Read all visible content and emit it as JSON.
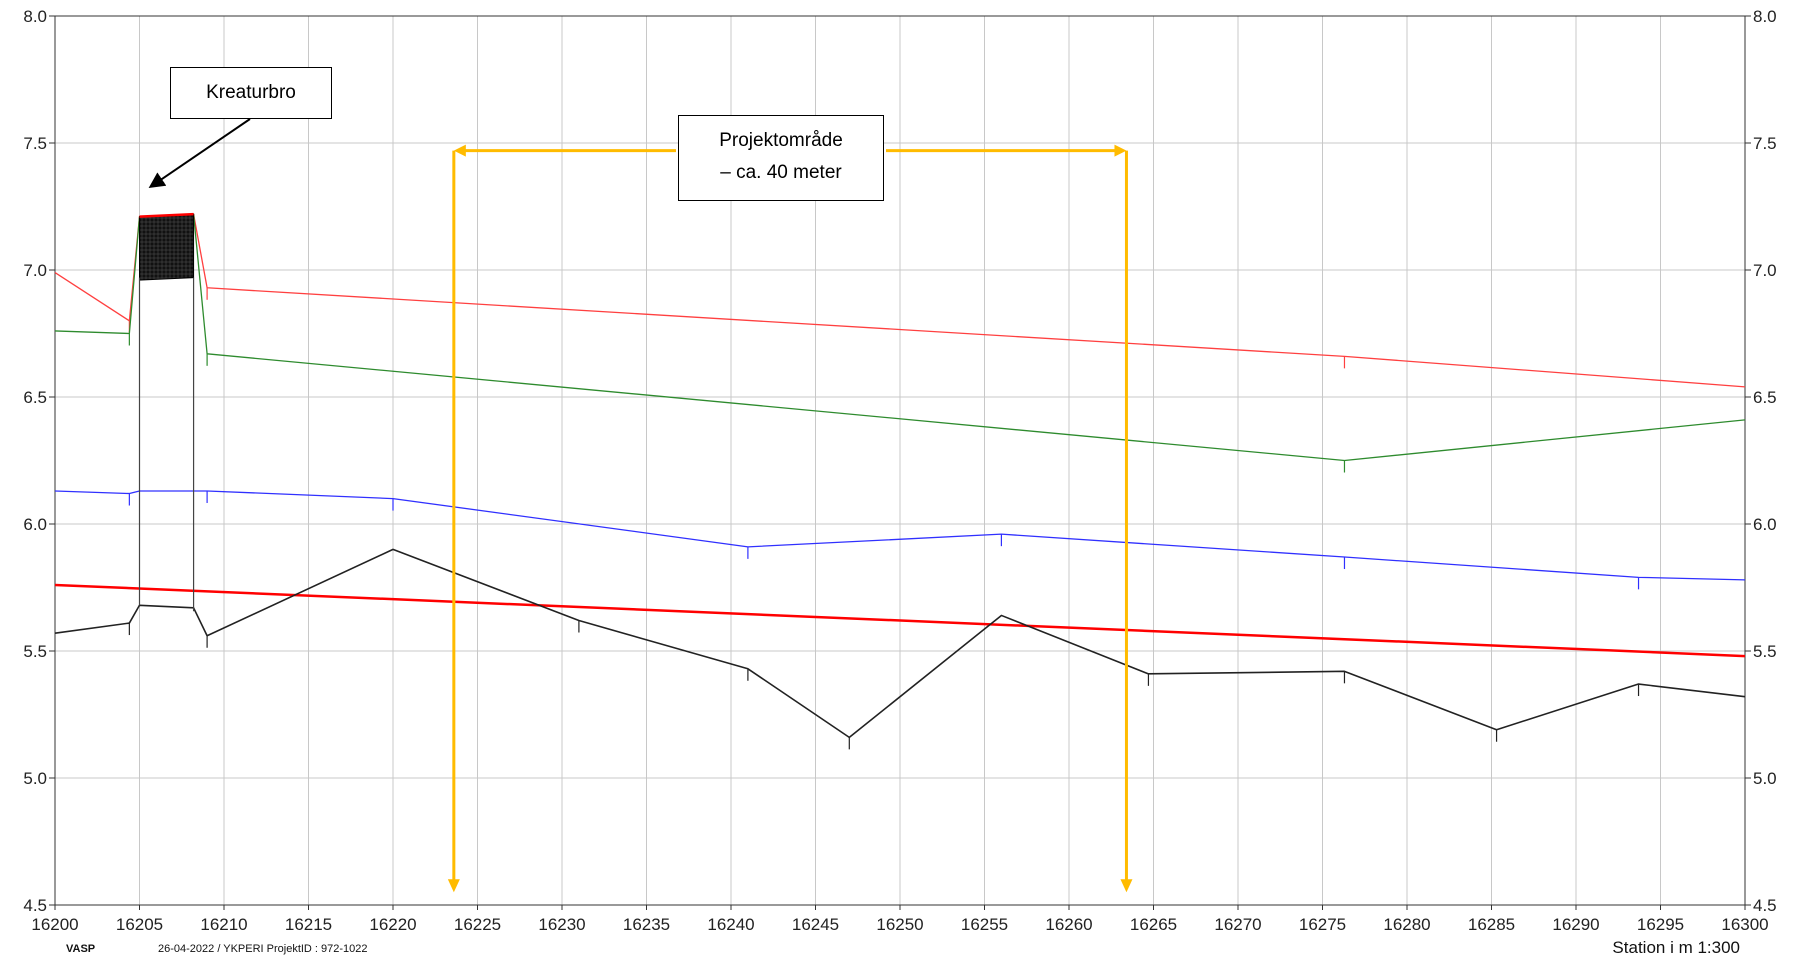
{
  "chart_data": {
    "type": "line",
    "xlim": [
      16200,
      16300
    ],
    "ylim": [
      4.5,
      8.0
    ],
    "x_ticks": [
      16200,
      16205,
      16210,
      16215,
      16220,
      16225,
      16230,
      16235,
      16240,
      16245,
      16250,
      16255,
      16260,
      16265,
      16270,
      16275,
      16280,
      16285,
      16290,
      16295,
      16300
    ],
    "y_ticks": [
      "4.5",
      "5.0",
      "5.5",
      "6.0",
      "6.5",
      "7.0",
      "7.5",
      "8.0"
    ],
    "grid": true,
    "xlabel": "Station i m  1:300",
    "series": [
      {
        "color": "#ff4040",
        "width": 1.3,
        "points": [
          [
            16200,
            6.99
          ],
          [
            16204.4,
            6.8
          ],
          [
            16205,
            7.21
          ],
          [
            16208.2,
            7.22
          ],
          [
            16209,
            6.93
          ],
          [
            16276.3,
            6.66
          ],
          [
            16300,
            6.54
          ]
        ],
        "ticks": [
          16204.4,
          16209,
          16276.3
        ]
      },
      {
        "color": "#2e8b2e",
        "width": 1.3,
        "points": [
          [
            16200,
            6.76
          ],
          [
            16204.4,
            6.75
          ],
          [
            16205,
            7.21
          ],
          [
            16208.2,
            7.22
          ],
          [
            16209,
            6.67
          ],
          [
            16276.3,
            6.25
          ],
          [
            16300,
            6.41
          ]
        ],
        "ticks": [
          16204.4,
          16209,
          16276.3
        ]
      },
      {
        "color": "#3030ff",
        "width": 1.3,
        "points": [
          [
            16200,
            6.13
          ],
          [
            16204.4,
            6.12
          ],
          [
            16205,
            6.13
          ],
          [
            16209,
            6.13
          ],
          [
            16220,
            6.1
          ],
          [
            16241,
            5.91
          ],
          [
            16256,
            5.96
          ],
          [
            16276.3,
            5.87
          ],
          [
            16293.7,
            5.79
          ],
          [
            16300,
            5.78
          ]
        ],
        "ticks": [
          16204.4,
          16209,
          16220,
          16241,
          16256,
          16276.3,
          16293.7
        ]
      },
      {
        "color": "#ff0000",
        "width": 2.5,
        "points": [
          [
            16200,
            5.76
          ],
          [
            16300,
            5.48
          ]
        ],
        "ticks": []
      },
      {
        "color": "#222222",
        "width": 1.6,
        "points": [
          [
            16200,
            5.57
          ],
          [
            16204.4,
            5.61
          ],
          [
            16205,
            5.68
          ],
          [
            16208.2,
            5.67
          ],
          [
            16209,
            5.56
          ],
          [
            16220,
            5.9
          ],
          [
            16231,
            5.62
          ],
          [
            16241,
            5.43
          ],
          [
            16247,
            5.16
          ],
          [
            16256,
            5.64
          ],
          [
            16264.7,
            5.41
          ],
          [
            16276.3,
            5.42
          ],
          [
            16285.3,
            5.19
          ],
          [
            16293.7,
            5.37
          ],
          [
            16300,
            5.32
          ]
        ],
        "ticks": [
          16204.4,
          16209,
          16231,
          16241,
          16247,
          16264.7,
          16276.3,
          16285.3,
          16293.7
        ]
      }
    ],
    "bridge": {
      "x_start": 16205,
      "x_end": 16208.2,
      "deck_top": 7.21,
      "deck_bottom": 6.97,
      "pier_bottom": 5.68
    },
    "annotations": [
      {
        "text": "Kreaturbro",
        "arrow_to": [
          16205.5,
          7.3
        ]
      },
      {
        "text": "Projektområde\n– ca. 40 meter",
        "span": [
          16223.6,
          16263.4
        ],
        "arrow_y": 7.47,
        "drop_to": 4.55,
        "color": "#ffbb00"
      }
    ]
  },
  "labels": {
    "kreaturbro": "Kreaturbro",
    "projekt_line1": "Projektområde",
    "projekt_line2": "– ca. 40 meter"
  },
  "footer": {
    "vasp": "VASP",
    "meta": "26-04-2022 / YKPERI   ProjektID : 972-1022",
    "station": "Station i m  1:300"
  }
}
